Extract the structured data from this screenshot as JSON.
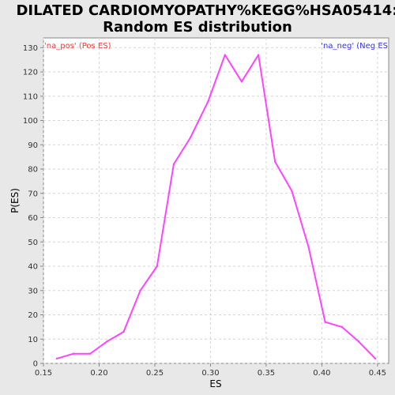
{
  "colors": {
    "series": "#ff44ff",
    "pos_label": "#ff3333",
    "neg_label": "#3333ff",
    "background": "#e8e8e8",
    "plot_bg": "#ffffff"
  },
  "chart_data": {
    "type": "line",
    "title_line1": "DILATED CARDIOMYOPATHY%KEGG%HSA05414:",
    "title_line2": "Random ES distribution",
    "xlabel": "ES",
    "ylabel": "P(ES)",
    "xlim": [
      0.15,
      0.46
    ],
    "ylim": [
      0,
      134
    ],
    "xticks": [
      "0.15",
      "0.20",
      "0.25",
      "0.30",
      "0.35",
      "0.40",
      "0.45"
    ],
    "yticks": [
      "0",
      "10",
      "20",
      "30",
      "40",
      "50",
      "60",
      "70",
      "80",
      "90",
      "100",
      "110",
      "120",
      "130"
    ],
    "legend_pos": "'na_pos' (Pos ES)",
    "legend_neg": "'na_neg' (Neg ES",
    "grid": true,
    "series": [
      {
        "x": [
          0.162,
          0.177,
          0.192,
          0.207,
          0.222,
          0.237,
          0.252,
          0.267,
          0.282,
          0.298,
          0.313,
          0.328,
          0.343,
          0.358,
          0.373,
          0.388,
          0.403,
          0.418,
          0.433,
          0.448
        ],
        "y": [
          2,
          4,
          4,
          9,
          13,
          30,
          40,
          82,
          93,
          108,
          127,
          116,
          127,
          83,
          71,
          48,
          17,
          15,
          9,
          2
        ]
      }
    ]
  }
}
